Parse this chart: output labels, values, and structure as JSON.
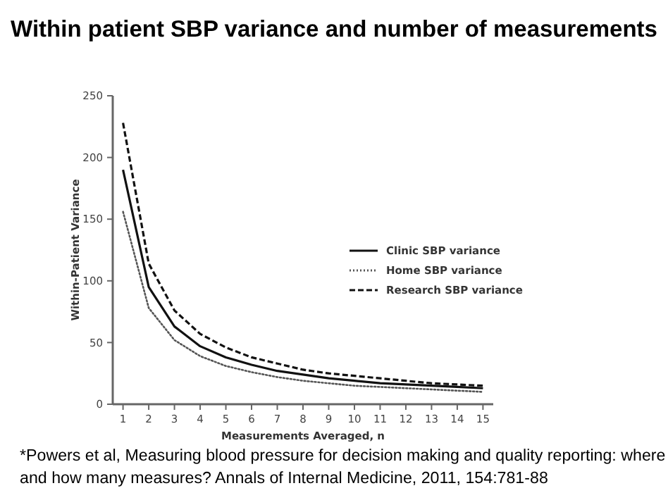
{
  "chart_data": {
    "type": "line",
    "title": "Within patient SBP variance and number of measurements",
    "xlabel": "Measurements Averaged, n",
    "ylabel": "Within-Patient Variance",
    "xlim": [
      0.6,
      15.4
    ],
    "xticks": [
      1,
      2,
      3,
      4,
      5,
      6,
      7,
      8,
      9,
      10,
      11,
      12,
      13,
      14,
      15
    ],
    "ylim": [
      0,
      250
    ],
    "yticks": [
      0,
      50,
      100,
      150,
      200,
      250
    ],
    "x": [
      1,
      2,
      3,
      4,
      5,
      6,
      7,
      8,
      9,
      10,
      11,
      12,
      13,
      14,
      15
    ],
    "series": [
      {
        "name": "Clinic SBP variance",
        "color": "#111111",
        "line_style": "solid",
        "values": [
          190,
          95,
          63,
          47,
          38,
          32,
          27,
          24,
          21,
          19,
          17,
          16,
          15,
          14,
          13
        ]
      },
      {
        "name": "Home SBP variance",
        "color": "#555555",
        "line_style": "dotted",
        "values": [
          156,
          78,
          52,
          39,
          31,
          26,
          22,
          19,
          17,
          15,
          14,
          13,
          12,
          11,
          10
        ]
      },
      {
        "name": "Research SBP variance",
        "color": "#111111",
        "line_style": "dashed",
        "values": [
          228,
          114,
          76,
          57,
          46,
          38,
          33,
          28,
          25,
          23,
          21,
          19,
          17,
          16,
          15
        ]
      }
    ],
    "legend": "right",
    "grid": false,
    "marker": "none",
    "annotations": [
      "*Powers et al, Measuring blood pressure for decision making and quality reporting: where and how many measures? Annals of Internal Medicine, 2011, 154:781-88"
    ]
  }
}
